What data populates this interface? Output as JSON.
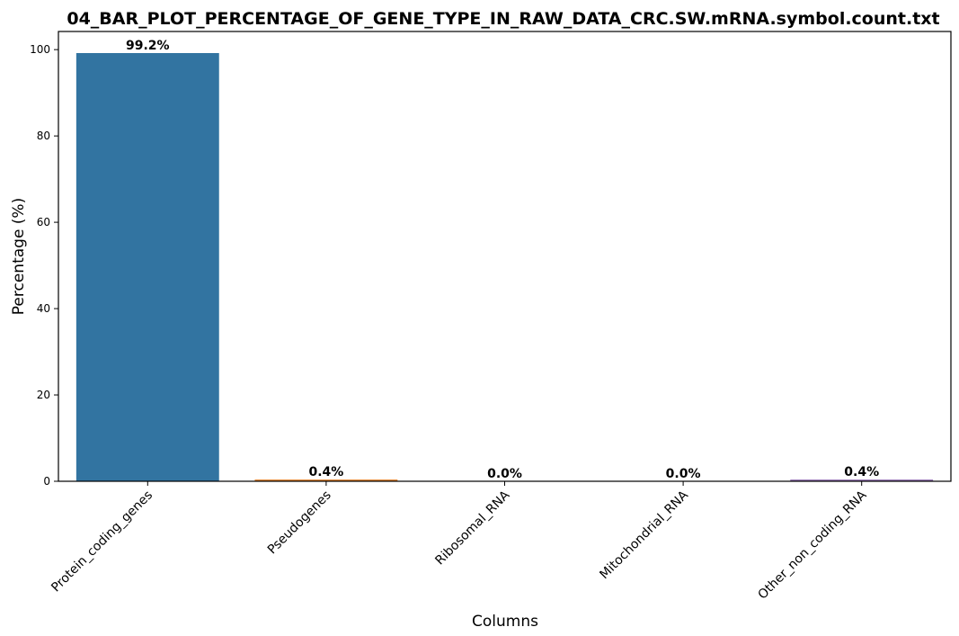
{
  "chart_data": {
    "type": "bar",
    "title": "04_BAR_PLOT_PERCENTAGE_OF_GENE_TYPE_IN_RAW_DATA_CRC.SW.mRNA.symbol.count.txt",
    "xlabel": "Columns",
    "ylabel": "Percentage (%)",
    "categories": [
      "Protein_coding_genes",
      "Pseudogenes",
      "Ribosomal_RNA",
      "Mitochondrial_RNA",
      "Other_non_coding_RNA"
    ],
    "values": [
      99.2,
      0.4,
      0.0,
      0.0,
      0.4
    ],
    "data_labels": [
      "99.2%",
      "0.4%",
      "0.0%",
      "0.0%",
      "0.4%"
    ],
    "colors": [
      "#3274a1",
      "#e1812c",
      "#3a923a",
      "#c03d3e",
      "#9372b2"
    ],
    "ylim": [
      0,
      104.2
    ],
    "yticks": [
      0,
      20,
      40,
      60,
      80,
      100
    ],
    "ytick_labels": [
      "0",
      "20",
      "40",
      "60",
      "80",
      "100"
    ],
    "grid": false,
    "legend": "none"
  }
}
